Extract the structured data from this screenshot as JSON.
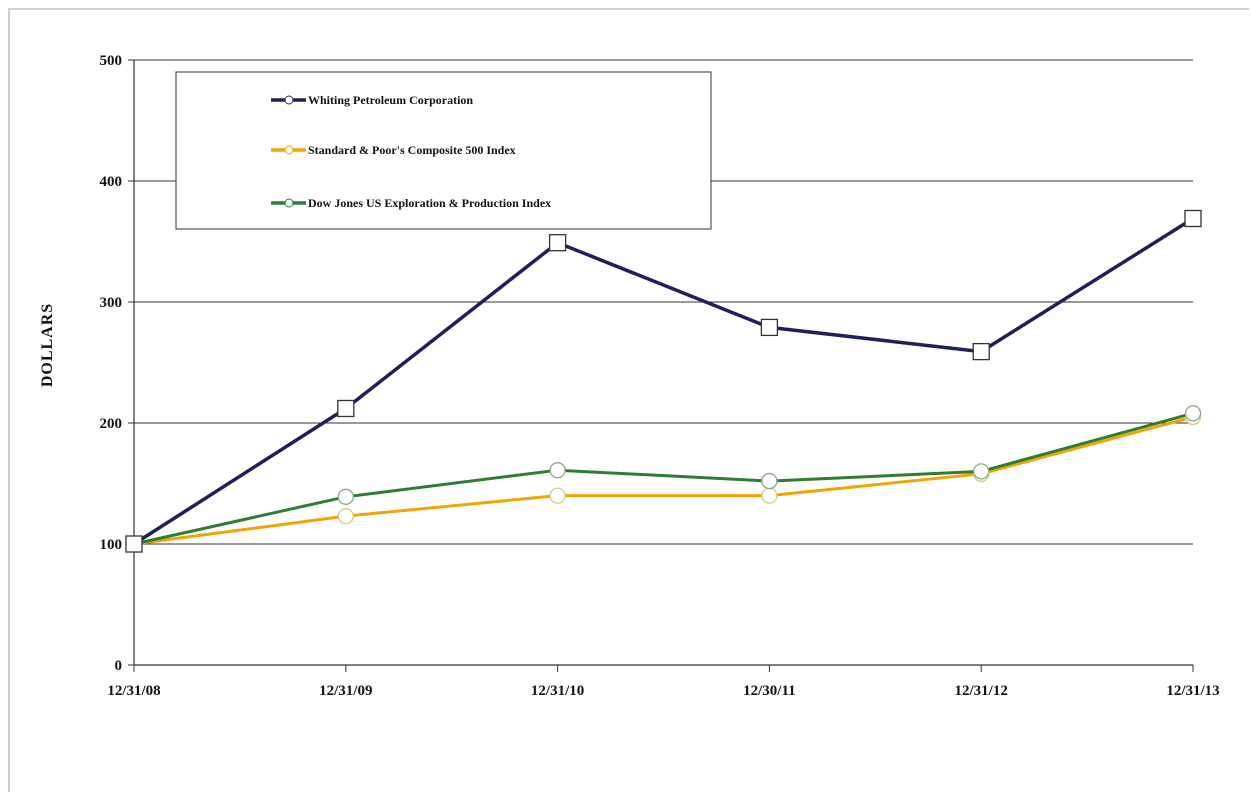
{
  "chart_data": {
    "type": "line",
    "title": "",
    "xlabel": "",
    "ylabel": "DOLLARS",
    "categories": [
      "12/31/08",
      "12/31/09",
      "12/31/10",
      "12/30/11",
      "12/31/12",
      "12/31/13"
    ],
    "yticks": [
      "0",
      "100",
      "200",
      "300",
      "400",
      "500"
    ],
    "ylim": [
      0,
      500
    ],
    "grid": true,
    "legend_placement": "top-left",
    "series": [
      {
        "name": "Whiting Petroleum Corporation",
        "color": "#1f1f5c",
        "marker": "square",
        "values": [
          100,
          212,
          349,
          279,
          259,
          369
        ]
      },
      {
        "name": "Standard & Poor's Composite 500 Index",
        "color": "#f0a500",
        "marker": "circle",
        "values": [
          100,
          123,
          140,
          140,
          158,
          205
        ]
      },
      {
        "name": "Dow Jones US Exploration & Production Index",
        "color": "#2e7d32",
        "marker": "circle",
        "values": [
          100,
          139,
          161,
          152,
          160,
          208
        ]
      }
    ]
  }
}
